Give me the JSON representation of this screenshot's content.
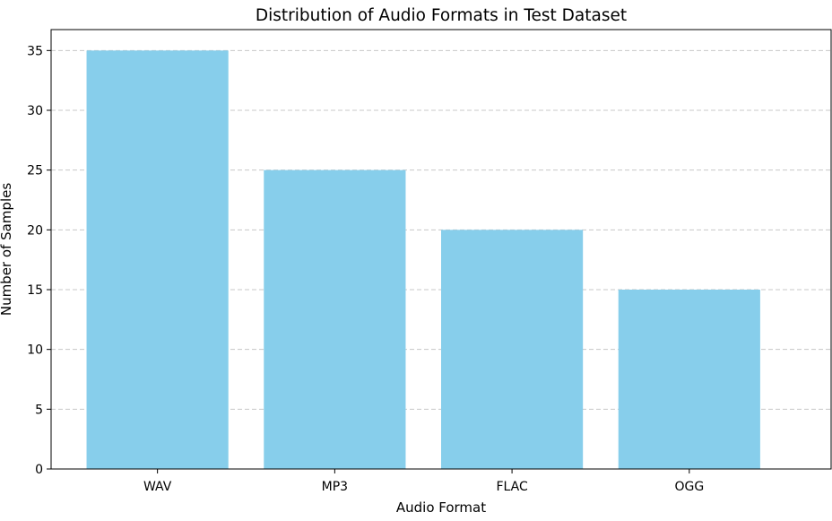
{
  "chart_data": {
    "type": "bar",
    "title": "Distribution of Audio Formats in Test Dataset",
    "xlabel": "Audio Format",
    "ylabel": "Number of Samples",
    "categories": [
      "WAV",
      "MP3",
      "FLAC",
      "OGG"
    ],
    "values": [
      35,
      25,
      20,
      15
    ],
    "ylim": [
      0,
      36.75
    ],
    "yticks": [
      0,
      5,
      10,
      15,
      20,
      25,
      30,
      35
    ],
    "grid": "y-dashed",
    "bar_color": "#87CEEB",
    "grid_color": "#c8c8c8",
    "axis_color": "#000000"
  }
}
